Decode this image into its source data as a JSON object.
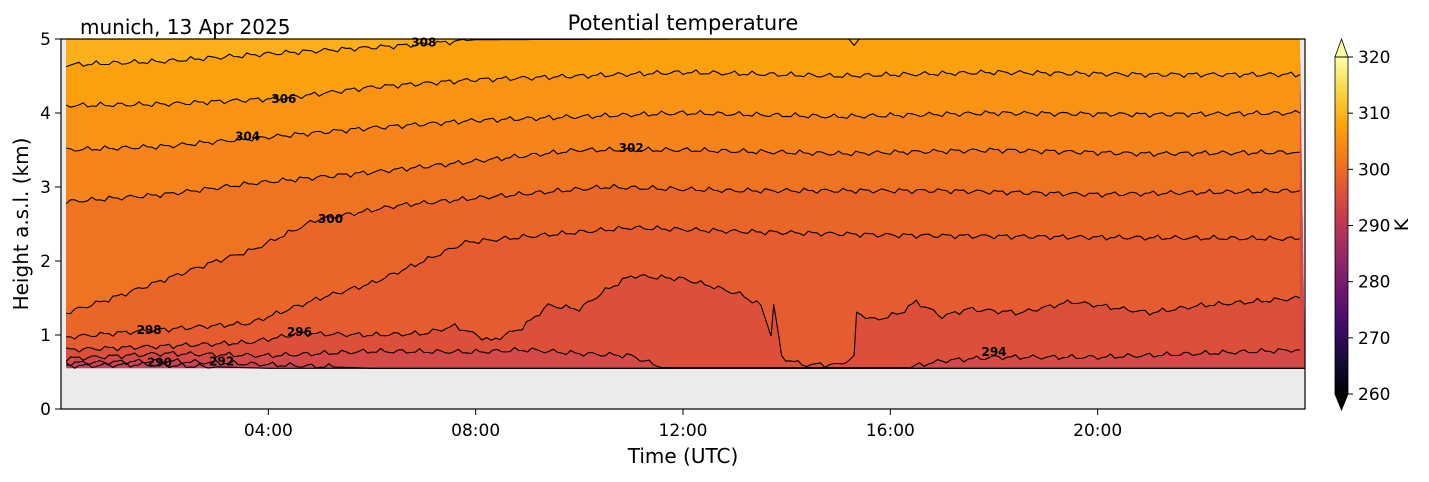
{
  "chart_data": {
    "type": "contour",
    "title": "Potential temperature",
    "subtitle": "munich, 13 Apr 2025",
    "xlabel": "Time (UTC)",
    "ylabel": "Height a.s.l. (km)",
    "xlim_hours": [
      0,
      24
    ],
    "ylim": [
      0,
      5
    ],
    "data_bottom_km": 0.55,
    "x_ticks": [
      {
        "h": 4,
        "label": "04:00"
      },
      {
        "h": 8,
        "label": "08:00"
      },
      {
        "h": 12,
        "label": "12:00"
      },
      {
        "h": 16,
        "label": "16:00"
      },
      {
        "h": 20,
        "label": "20:00"
      }
    ],
    "y_ticks": [
      {
        "v": 0,
        "label": "0"
      },
      {
        "v": 1,
        "label": "1"
      },
      {
        "v": 2,
        "label": "2"
      },
      {
        "v": 3,
        "label": "3"
      },
      {
        "v": 4,
        "label": "4"
      },
      {
        "v": 5,
        "label": "5"
      }
    ],
    "base_color": "#c5405a",
    "contours": [
      {
        "level": 290,
        "fill_above": "#cc4455",
        "points": [
          [
            0.1,
            0.58
          ],
          [
            1.5,
            0.6
          ],
          [
            3,
            0.57
          ],
          [
            4,
            0.55
          ],
          [
            24,
            0.55
          ]
        ]
      },
      {
        "level": 292,
        "fill_above": "#d44a48",
        "points": [
          [
            0.1,
            0.62
          ],
          [
            2,
            0.65
          ],
          [
            4,
            0.6
          ],
          [
            6,
            0.55
          ],
          [
            24,
            0.55
          ]
        ]
      },
      {
        "level": 294,
        "fill_above": "#dc5039",
        "points": [
          [
            0.1,
            0.68
          ],
          [
            2,
            0.75
          ],
          [
            4,
            0.72
          ],
          [
            6,
            0.78
          ],
          [
            8,
            0.77
          ],
          [
            9,
            0.8
          ],
          [
            10,
            0.75
          ],
          [
            11,
            0.72
          ],
          [
            11.6,
            0.56
          ],
          [
            16.3,
            0.56
          ],
          [
            17,
            0.65
          ],
          [
            18,
            0.7
          ],
          [
            20,
            0.7
          ],
          [
            22,
            0.75
          ],
          [
            23.9,
            0.8
          ]
        ]
      },
      {
        "level": 296,
        "fill_above": "#e55c30",
        "points": [
          [
            0.1,
            0.8
          ],
          [
            2,
            0.85
          ],
          [
            3.65,
            0.9
          ],
          [
            4.6,
            1.02
          ],
          [
            6,
            1.0
          ],
          [
            7,
            1.02
          ],
          [
            7.6,
            1.12
          ],
          [
            8.3,
            0.92
          ],
          [
            8.9,
            1.1
          ],
          [
            9.4,
            1.4
          ],
          [
            10,
            1.35
          ],
          [
            10.5,
            1.6
          ],
          [
            11,
            1.8
          ],
          [
            11.5,
            1.78
          ],
          [
            12,
            1.76
          ],
          [
            12.6,
            1.65
          ],
          [
            13.1,
            1.55
          ],
          [
            13.5,
            1.4
          ],
          [
            13.7,
            1.0
          ],
          [
            13.75,
            1.4
          ],
          [
            13.85,
            0.95
          ],
          [
            13.9,
            0.7
          ],
          [
            14.3,
            0.6
          ],
          [
            15,
            0.6
          ],
          [
            15.3,
            0.7
          ],
          [
            15.35,
            1.3
          ],
          [
            15.7,
            1.2
          ],
          [
            16.2,
            1.3
          ],
          [
            16.5,
            1.45
          ],
          [
            17,
            1.25
          ],
          [
            17.5,
            1.35
          ],
          [
            18.5,
            1.3
          ],
          [
            19.5,
            1.45
          ],
          [
            21,
            1.3
          ],
          [
            22,
            1.4
          ],
          [
            23,
            1.45
          ],
          [
            23.9,
            1.5
          ]
        ]
      },
      {
        "level": 298,
        "fill_above": "#ea6628",
        "points": [
          [
            0.1,
            0.97
          ],
          [
            1.5,
            1.05
          ],
          [
            3.65,
            1.16
          ],
          [
            5,
            1.5
          ],
          [
            6,
            1.7
          ],
          [
            7,
            2.0
          ],
          [
            7.8,
            2.25
          ],
          [
            9,
            2.33
          ],
          [
            11,
            2.45
          ],
          [
            13,
            2.4
          ],
          [
            16,
            2.35
          ],
          [
            20,
            2.32
          ],
          [
            23.9,
            2.3
          ]
        ]
      },
      {
        "level": 300,
        "fill_above": "#ef7421",
        "points": [
          [
            0.1,
            1.3
          ],
          [
            1,
            1.5
          ],
          [
            2,
            1.75
          ],
          [
            3,
            2.0
          ],
          [
            3.7,
            2.15
          ],
          [
            4.9,
            2.55
          ],
          [
            6.5,
            2.75
          ],
          [
            8,
            2.85
          ],
          [
            10.5,
            3.0
          ],
          [
            13,
            2.95
          ],
          [
            17,
            2.95
          ],
          [
            20,
            2.9
          ],
          [
            23.9,
            2.95
          ]
        ]
      },
      {
        "level": 302,
        "fill_above": "#f5841a",
        "points": [
          [
            0.1,
            2.8
          ],
          [
            2,
            2.9
          ],
          [
            3.7,
            3.05
          ],
          [
            6,
            3.2
          ],
          [
            8,
            3.35
          ],
          [
            10,
            3.5
          ],
          [
            12,
            3.5
          ],
          [
            15,
            3.45
          ],
          [
            18,
            3.5
          ],
          [
            21,
            3.45
          ],
          [
            23.9,
            3.47
          ]
        ]
      },
      {
        "level": 304,
        "fill_above": "#f99313",
        "points": [
          [
            0.1,
            3.5
          ],
          [
            2,
            3.55
          ],
          [
            3.6,
            3.65
          ],
          [
            6,
            3.8
          ],
          [
            8,
            3.9
          ],
          [
            12,
            4.0
          ],
          [
            15,
            3.95
          ],
          [
            18,
            4.0
          ],
          [
            21,
            3.98
          ],
          [
            23.9,
            4.0
          ]
        ]
      },
      {
        "level": 306,
        "fill_above": "#fba10e",
        "points": [
          [
            0.1,
            4.1
          ],
          [
            2,
            4.12
          ],
          [
            4.3,
            4.2
          ],
          [
            6,
            4.35
          ],
          [
            8,
            4.45
          ],
          [
            12,
            4.55
          ],
          [
            15,
            4.5
          ],
          [
            18,
            4.55
          ],
          [
            21,
            4.52
          ],
          [
            23.9,
            4.52
          ]
        ]
      },
      {
        "level": 308,
        "fill_above": "#fbb01a",
        "points": [
          [
            0.1,
            4.65
          ],
          [
            2,
            4.7
          ],
          [
            4,
            4.8
          ],
          [
            7,
            4.93
          ],
          [
            8,
            4.99
          ],
          [
            12,
            5.0
          ],
          [
            15.2,
            5.0
          ],
          [
            15.3,
            4.95
          ],
          [
            15.5,
            5.0
          ],
          [
            23.9,
            5.0
          ]
        ]
      }
    ],
    "contour_labels": [
      {
        "text": "308",
        "h": 7.0,
        "v": 4.95
      },
      {
        "text": "306",
        "h": 4.3,
        "v": 4.19
      },
      {
        "text": "304",
        "h": 3.6,
        "v": 3.68
      },
      {
        "text": "302",
        "h": 11.0,
        "v": 3.53
      },
      {
        "text": "300",
        "h": 5.2,
        "v": 2.57
      },
      {
        "text": "298",
        "h": 1.7,
        "v": 1.07
      },
      {
        "text": "296",
        "h": 4.6,
        "v": 1.04
      },
      {
        "text": "294",
        "h": 18.0,
        "v": 0.77
      },
      {
        "text": "292",
        "h": 3.1,
        "v": 0.64
      },
      {
        "text": "290",
        "h": 1.9,
        "v": 0.63
      }
    ],
    "colorbar": {
      "label": "K",
      "range": [
        260,
        320
      ],
      "ticks": [
        "260",
        "270",
        "280",
        "290",
        "300",
        "310",
        "320"
      ],
      "extend": "both"
    }
  }
}
